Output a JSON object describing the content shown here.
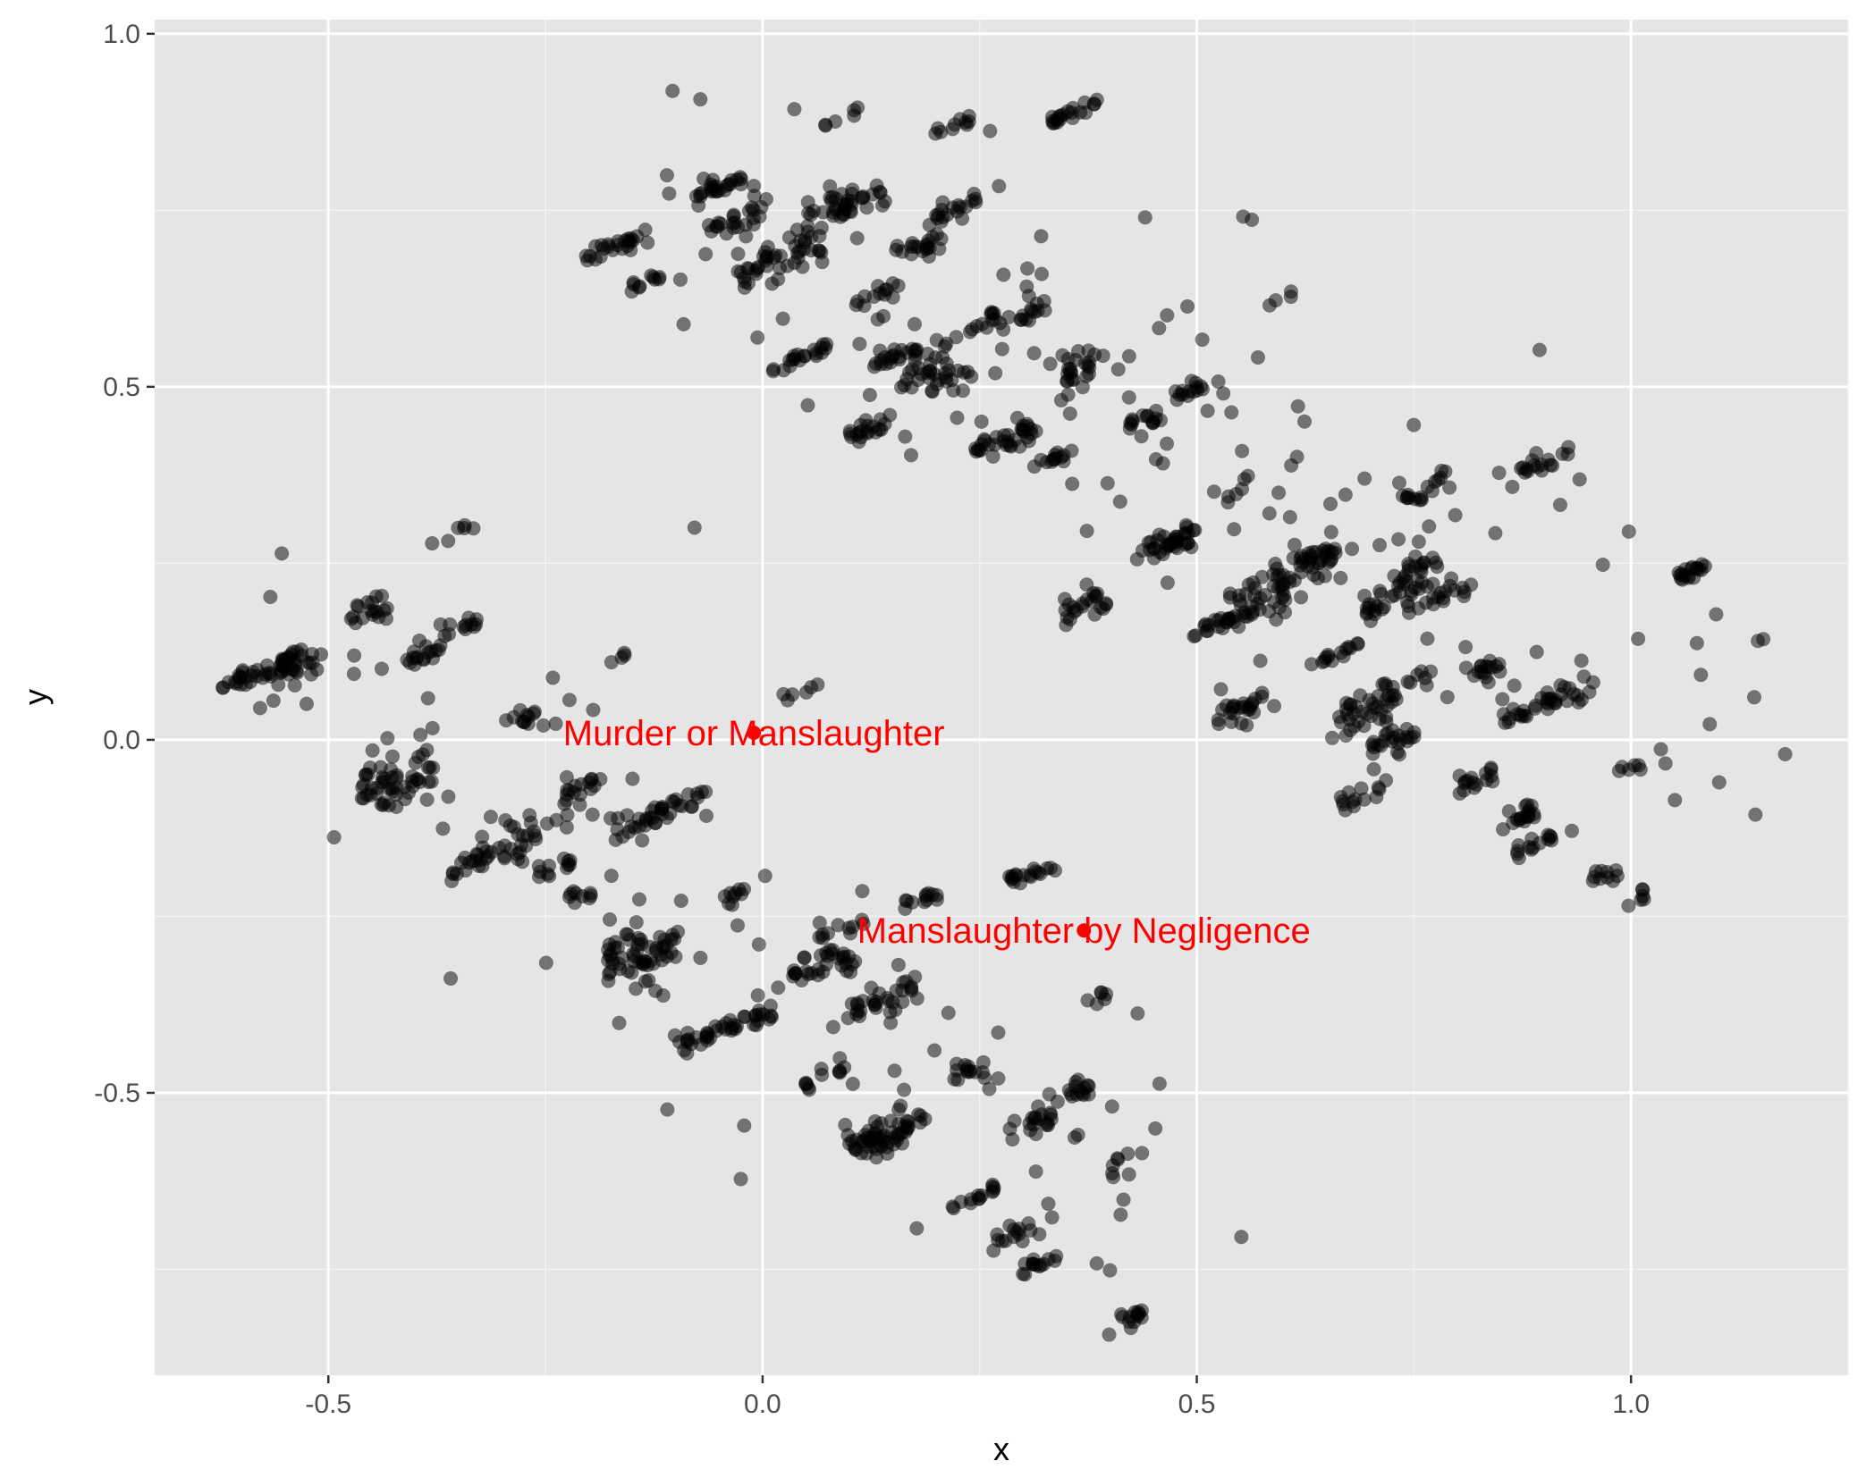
{
  "chart_data": {
    "type": "scatter",
    "title": "",
    "xlabel": "x",
    "ylabel": "y",
    "xlim": [
      -0.7,
      1.25
    ],
    "ylim": [
      -0.9,
      1.02
    ],
    "x_ticks": [
      -0.5,
      0.0,
      0.5,
      1.0
    ],
    "x_tick_labels": [
      "-0.5",
      "0.0",
      "0.5",
      "1.0"
    ],
    "y_ticks": [
      -0.5,
      0.0,
      0.5,
      1.0
    ],
    "y_tick_labels": [
      "-0.5",
      "0.0",
      "0.5",
      "1.0"
    ],
    "grid": true,
    "background": "#e5e5e5",
    "point_color": "#000000",
    "point_opacity": 0.5,
    "highlight_color": "#ff0000",
    "highlights": [
      {
        "label": "Murder or Manslaughter",
        "x": -0.01,
        "y": 0.01
      },
      {
        "label": "Manslaughter by Negligence",
        "x": 0.37,
        "y": -0.27
      }
    ],
    "clusters": [
      {
        "cx": -0.58,
        "cy": 0.095,
        "n": 40,
        "sx": 0.03,
        "sy": 0.012
      },
      {
        "cx": -0.53,
        "cy": 0.11,
        "n": 20,
        "sx": 0.02,
        "sy": 0.02
      },
      {
        "cx": -0.46,
        "cy": 0.18,
        "n": 18,
        "sx": 0.02,
        "sy": 0.015
      },
      {
        "cx": -0.39,
        "cy": 0.12,
        "n": 16,
        "sx": 0.015,
        "sy": 0.01
      },
      {
        "cx": -0.35,
        "cy": 0.16,
        "n": 12,
        "sx": 0.015,
        "sy": 0.01
      },
      {
        "cx": -0.36,
        "cy": 0.29,
        "n": 6,
        "sx": 0.02,
        "sy": 0.01
      },
      {
        "cx": -0.42,
        "cy": -0.06,
        "n": 50,
        "sx": 0.03,
        "sy": 0.03
      },
      {
        "cx": -0.31,
        "cy": -0.16,
        "n": 40,
        "sx": 0.035,
        "sy": 0.02
      },
      {
        "cx": -0.28,
        "cy": 0.03,
        "n": 10,
        "sx": 0.015,
        "sy": 0.01
      },
      {
        "cx": -0.24,
        "cy": -0.18,
        "n": 12,
        "sx": 0.015,
        "sy": 0.01
      },
      {
        "cx": -0.21,
        "cy": -0.07,
        "n": 18,
        "sx": 0.02,
        "sy": 0.015
      },
      {
        "cx": -0.21,
        "cy": -0.22,
        "n": 8,
        "sx": 0.01,
        "sy": 0.01
      },
      {
        "cx": -0.14,
        "cy": -0.12,
        "n": 22,
        "sx": 0.025,
        "sy": 0.015
      },
      {
        "cx": -0.09,
        "cy": -0.09,
        "n": 18,
        "sx": 0.02,
        "sy": 0.015
      },
      {
        "cx": -0.16,
        "cy": -0.29,
        "n": 16,
        "sx": 0.015,
        "sy": 0.015
      },
      {
        "cx": -0.14,
        "cy": -0.31,
        "n": 40,
        "sx": 0.03,
        "sy": 0.02
      },
      {
        "cx": -0.04,
        "cy": -0.41,
        "n": 40,
        "sx": 0.04,
        "sy": 0.012
      },
      {
        "cx": -0.03,
        "cy": -0.22,
        "n": 8,
        "sx": 0.01,
        "sy": 0.008
      },
      {
        "cx": 0.07,
        "cy": -0.32,
        "n": 30,
        "sx": 0.025,
        "sy": 0.015
      },
      {
        "cx": 0.07,
        "cy": -0.48,
        "n": 10,
        "sx": 0.02,
        "sy": 0.01
      },
      {
        "cx": 0.14,
        "cy": -0.56,
        "n": 60,
        "sx": 0.03,
        "sy": 0.025
      },
      {
        "cx": 0.14,
        "cy": -0.37,
        "n": 30,
        "sx": 0.03,
        "sy": 0.02
      },
      {
        "cx": 0.18,
        "cy": -0.23,
        "n": 12,
        "sx": 0.015,
        "sy": 0.01
      },
      {
        "cx": 0.09,
        "cy": -0.27,
        "n": 10,
        "sx": 0.02,
        "sy": 0.01
      },
      {
        "cx": 0.24,
        "cy": -0.47,
        "n": 14,
        "sx": 0.015,
        "sy": 0.01
      },
      {
        "cx": 0.24,
        "cy": -0.65,
        "n": 14,
        "sx": 0.02,
        "sy": 0.01
      },
      {
        "cx": 0.29,
        "cy": -0.7,
        "n": 12,
        "sx": 0.015,
        "sy": 0.01
      },
      {
        "cx": 0.32,
        "cy": -0.74,
        "n": 14,
        "sx": 0.015,
        "sy": 0.008
      },
      {
        "cx": 0.31,
        "cy": -0.54,
        "n": 20,
        "sx": 0.02,
        "sy": 0.02
      },
      {
        "cx": 0.36,
        "cy": -0.5,
        "n": 14,
        "sx": 0.015,
        "sy": 0.01
      },
      {
        "cx": 0.31,
        "cy": -0.19,
        "n": 18,
        "sx": 0.02,
        "sy": 0.008
      },
      {
        "cx": 0.42,
        "cy": -0.82,
        "n": 14,
        "sx": 0.015,
        "sy": 0.012
      },
      {
        "cx": 0.42,
        "cy": -0.6,
        "n": 8,
        "sx": 0.015,
        "sy": 0.015
      },
      {
        "cx": 0.38,
        "cy": -0.37,
        "n": 6,
        "sx": 0.015,
        "sy": 0.008
      },
      {
        "cx": -0.17,
        "cy": 0.7,
        "n": 24,
        "sx": 0.025,
        "sy": 0.01
      },
      {
        "cx": -0.13,
        "cy": 0.65,
        "n": 10,
        "sx": 0.015,
        "sy": 0.01
      },
      {
        "cx": -0.05,
        "cy": 0.78,
        "n": 24,
        "sx": 0.02,
        "sy": 0.012
      },
      {
        "cx": -0.03,
        "cy": 0.74,
        "n": 20,
        "sx": 0.025,
        "sy": 0.015
      },
      {
        "cx": 0.02,
        "cy": 0.68,
        "n": 40,
        "sx": 0.035,
        "sy": 0.02
      },
      {
        "cx": 0.07,
        "cy": 0.75,
        "n": 22,
        "sx": 0.025,
        "sy": 0.02
      },
      {
        "cx": 0.11,
        "cy": 0.76,
        "n": 20,
        "sx": 0.025,
        "sy": 0.015
      },
      {
        "cx": 0.04,
        "cy": 0.54,
        "n": 18,
        "sx": 0.025,
        "sy": 0.012
      },
      {
        "cx": 0.13,
        "cy": 0.63,
        "n": 12,
        "sx": 0.02,
        "sy": 0.012
      },
      {
        "cx": 0.18,
        "cy": 0.7,
        "n": 20,
        "sx": 0.02,
        "sy": 0.012
      },
      {
        "cx": 0.22,
        "cy": 0.75,
        "n": 18,
        "sx": 0.02,
        "sy": 0.015
      },
      {
        "cx": 0.15,
        "cy": 0.54,
        "n": 20,
        "sx": 0.02,
        "sy": 0.012
      },
      {
        "cx": 0.2,
        "cy": 0.52,
        "n": 36,
        "sx": 0.03,
        "sy": 0.025
      },
      {
        "cx": 0.12,
        "cy": 0.44,
        "n": 20,
        "sx": 0.02,
        "sy": 0.012
      },
      {
        "cx": 0.25,
        "cy": 0.59,
        "n": 12,
        "sx": 0.02,
        "sy": 0.012
      },
      {
        "cx": 0.3,
        "cy": 0.6,
        "n": 14,
        "sx": 0.02,
        "sy": 0.015
      },
      {
        "cx": 0.28,
        "cy": 0.42,
        "n": 30,
        "sx": 0.025,
        "sy": 0.015
      },
      {
        "cx": 0.37,
        "cy": 0.52,
        "n": 24,
        "sx": 0.02,
        "sy": 0.025
      },
      {
        "cx": 0.34,
        "cy": 0.4,
        "n": 12,
        "sx": 0.015,
        "sy": 0.01
      },
      {
        "cx": 0.36,
        "cy": 0.89,
        "n": 20,
        "sx": 0.02,
        "sy": 0.008
      },
      {
        "cx": 0.22,
        "cy": 0.87,
        "n": 10,
        "sx": 0.015,
        "sy": 0.008
      },
      {
        "cx": 0.09,
        "cy": 0.88,
        "n": 6,
        "sx": 0.015,
        "sy": 0.008
      },
      {
        "cx": 0.37,
        "cy": 0.19,
        "n": 22,
        "sx": 0.02,
        "sy": 0.015
      },
      {
        "cx": 0.44,
        "cy": 0.45,
        "n": 14,
        "sx": 0.015,
        "sy": 0.012
      },
      {
        "cx": 0.45,
        "cy": 0.27,
        "n": 16,
        "sx": 0.02,
        "sy": 0.012
      },
      {
        "cx": 0.48,
        "cy": 0.28,
        "n": 20,
        "sx": 0.015,
        "sy": 0.015
      },
      {
        "cx": 0.49,
        "cy": 0.49,
        "n": 14,
        "sx": 0.012,
        "sy": 0.012
      },
      {
        "cx": 0.53,
        "cy": 0.17,
        "n": 22,
        "sx": 0.025,
        "sy": 0.012
      },
      {
        "cx": 0.57,
        "cy": 0.2,
        "n": 30,
        "sx": 0.025,
        "sy": 0.025
      },
      {
        "cx": 0.55,
        "cy": 0.04,
        "n": 24,
        "sx": 0.02,
        "sy": 0.02
      },
      {
        "cx": 0.62,
        "cy": 0.24,
        "n": 30,
        "sx": 0.025,
        "sy": 0.03
      },
      {
        "cx": 0.64,
        "cy": 0.26,
        "n": 18,
        "sx": 0.015,
        "sy": 0.01
      },
      {
        "cx": 0.66,
        "cy": 0.12,
        "n": 14,
        "sx": 0.02,
        "sy": 0.01
      },
      {
        "cx": 0.69,
        "cy": 0.03,
        "n": 34,
        "sx": 0.025,
        "sy": 0.025
      },
      {
        "cx": 0.69,
        "cy": -0.08,
        "n": 14,
        "sx": 0.02,
        "sy": 0.012
      },
      {
        "cx": 0.73,
        "cy": 0.2,
        "n": 28,
        "sx": 0.025,
        "sy": 0.02
      },
      {
        "cx": 0.75,
        "cy": 0.24,
        "n": 20,
        "sx": 0.02,
        "sy": 0.015
      },
      {
        "cx": 0.73,
        "cy": 0.0,
        "n": 22,
        "sx": 0.02,
        "sy": 0.015
      },
      {
        "cx": 0.76,
        "cy": 0.36,
        "n": 16,
        "sx": 0.02,
        "sy": 0.015
      },
      {
        "cx": 0.74,
        "cy": 0.08,
        "n": 12,
        "sx": 0.02,
        "sy": 0.015
      },
      {
        "cx": 0.79,
        "cy": 0.21,
        "n": 14,
        "sx": 0.02,
        "sy": 0.015
      },
      {
        "cx": 0.83,
        "cy": 0.1,
        "n": 16,
        "sx": 0.015,
        "sy": 0.012
      },
      {
        "cx": 0.82,
        "cy": -0.06,
        "n": 16,
        "sx": 0.015,
        "sy": 0.012
      },
      {
        "cx": 0.87,
        "cy": -0.11,
        "n": 18,
        "sx": 0.015,
        "sy": 0.012
      },
      {
        "cx": 0.89,
        "cy": -0.15,
        "n": 14,
        "sx": 0.015,
        "sy": 0.012
      },
      {
        "cx": 0.88,
        "cy": 0.04,
        "n": 16,
        "sx": 0.02,
        "sy": 0.012
      },
      {
        "cx": 0.9,
        "cy": 0.39,
        "n": 16,
        "sx": 0.02,
        "sy": 0.01
      },
      {
        "cx": 0.93,
        "cy": 0.07,
        "n": 18,
        "sx": 0.02,
        "sy": 0.015
      },
      {
        "cx": 0.97,
        "cy": -0.19,
        "n": 10,
        "sx": 0.015,
        "sy": 0.01
      },
      {
        "cx": 1.0,
        "cy": -0.04,
        "n": 6,
        "sx": 0.012,
        "sy": 0.01
      },
      {
        "cx": 1.0,
        "cy": -0.23,
        "n": 6,
        "sx": 0.012,
        "sy": 0.008
      },
      {
        "cx": 1.07,
        "cy": 0.24,
        "n": 18,
        "sx": 0.012,
        "sy": 0.008
      },
      {
        "cx": 1.14,
        "cy": 0.06,
        "n": 1,
        "sx": 0.002,
        "sy": 0.002
      },
      {
        "cx": 1.16,
        "cy": 0.15,
        "n": 2,
        "sx": 0.01,
        "sy": 0.005
      },
      {
        "cx": 0.55,
        "cy": 0.36,
        "n": 4,
        "sx": 0.01,
        "sy": 0.01
      },
      {
        "cx": 0.6,
        "cy": 0.63,
        "n": 4,
        "sx": 0.015,
        "sy": 0.01
      },
      {
        "cx": 0.56,
        "cy": 0.74,
        "n": 2,
        "sx": 0.01,
        "sy": 0.005
      },
      {
        "cx": 0.05,
        "cy": 0.07,
        "n": 6,
        "sx": 0.02,
        "sy": 0.01
      },
      {
        "cx": -0.16,
        "cy": 0.12,
        "n": 4,
        "sx": 0.015,
        "sy": 0.008
      }
    ],
    "scatter_region": {
      "xmin": -0.6,
      "xmax": 1.18,
      "ymin": -0.84,
      "ymax": 0.93
    },
    "scatter_n": 260
  }
}
